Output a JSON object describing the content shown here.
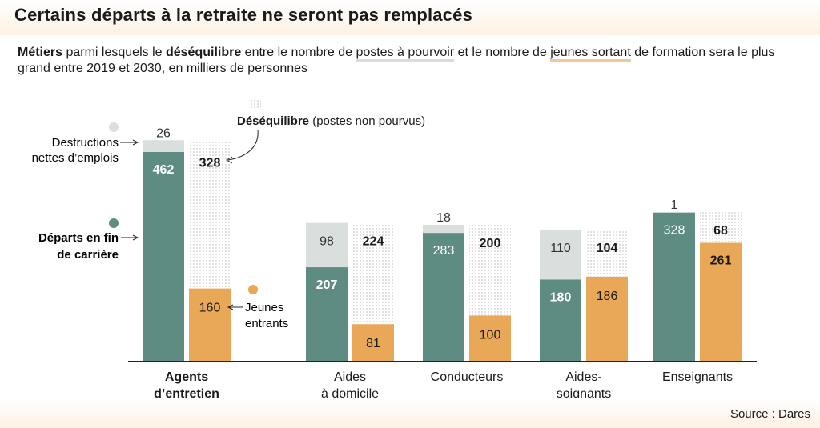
{
  "title": "Certains départs à la retraite ne seront pas remplacés",
  "subtitle": {
    "w1": "Métiers",
    "w2": " parmi lesquels le ",
    "w3": "déséquilibre",
    "w4": " entre le nombre de ",
    "w5": "postes à pourvoir",
    "w6": " et le nombre de ",
    "w7": "jeunes sortant",
    "w8": " de formation sera le plus grand entre 2019 et 2030, en milliers de personnes"
  },
  "source": "Source : Dares",
  "colors": {
    "departs": "#5f8c82",
    "destructions": "#d8dfdd",
    "jeunes": "#e8a857",
    "desequilibre_dots": "#c8c8c8"
  },
  "legend": {
    "destructions": [
      "Destructions",
      "nettes d’emplois"
    ],
    "departs": [
      "Départs en fin",
      "de carrière"
    ],
    "desequilibre_bold": "Déséquilibre",
    "desequilibre_rest": " (postes non pourvus)",
    "jeunes": [
      "Jeunes",
      "entrants"
    ]
  },
  "chart_data": {
    "type": "bar",
    "categories": [
      [
        "Agents",
        "d’entretien"
      ],
      [
        "Aides",
        "à domicile"
      ],
      [
        "Conducteurs"
      ],
      [
        "Aides-",
        "soignants"
      ],
      [
        "Enseignants"
      ]
    ],
    "series": [
      {
        "name": "Départs en fin de carrière",
        "values": [
          462,
          207,
          283,
          180,
          328
        ]
      },
      {
        "name": "Destructions nettes d’emplois",
        "values": [
          26,
          98,
          18,
          110,
          1
        ]
      },
      {
        "name": "Jeunes entrants",
        "values": [
          160,
          81,
          100,
          186,
          261
        ]
      },
      {
        "name": "Déséquilibre (postes non pourvus)",
        "values": [
          328,
          224,
          200,
          104,
          68
        ]
      }
    ],
    "ylim": [
      0,
      490
    ]
  }
}
